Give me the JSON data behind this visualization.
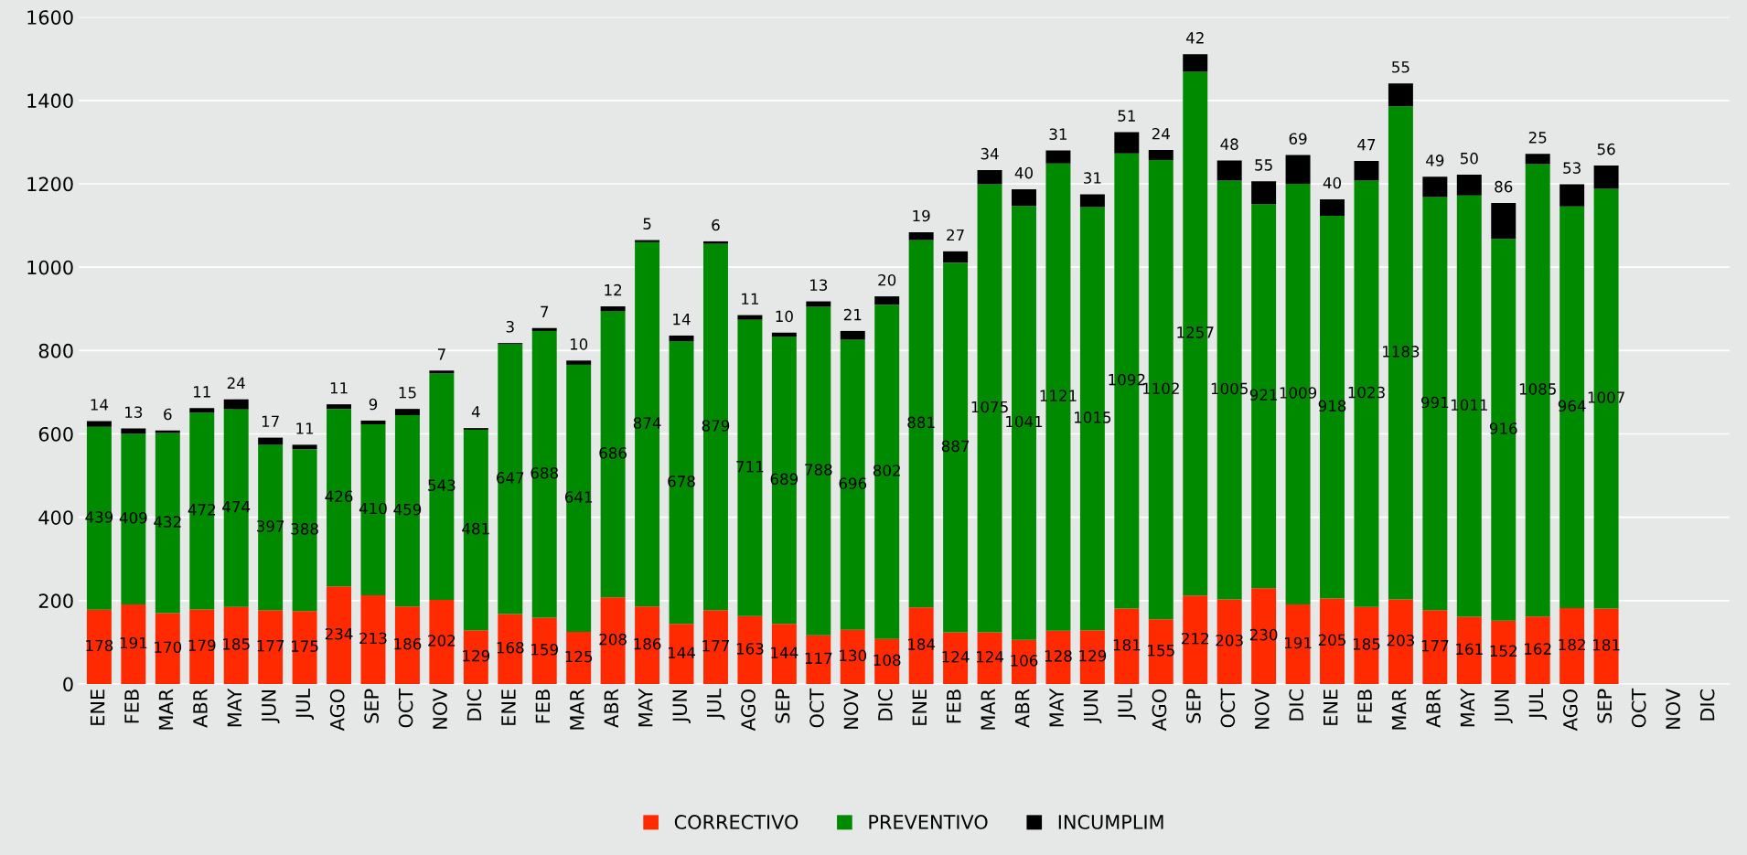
{
  "chart_data": {
    "type": "bar",
    "stacked": true,
    "data_labels": true,
    "grid": "y",
    "legend": "bottom",
    "ylim": [
      0,
      1600
    ],
    "yticks": [
      0,
      200,
      400,
      600,
      800,
      1000,
      1200,
      1400,
      1600
    ],
    "categories": [
      "ENE",
      "FEB",
      "MAR",
      "ABR",
      "MAY",
      "JUN",
      "JUL",
      "AGO",
      "SEP",
      "OCT",
      "NOV",
      "DIC",
      "ENE",
      "FEB",
      "MAR",
      "ABR",
      "MAY",
      "JUN",
      "JUL",
      "AGO",
      "SEP",
      "OCT",
      "NOV",
      "DIC",
      "ENE",
      "FEB",
      "MAR",
      "ABR",
      "MAY",
      "JUN",
      "JUL",
      "AGO",
      "SEP",
      "OCT",
      "NOV",
      "DIC",
      "ENE",
      "FEB",
      "MAR",
      "ABR",
      "MAY",
      "JUN",
      "JUL",
      "AGO",
      "SEP",
      "OCT",
      "NOV",
      "DIC"
    ],
    "series": [
      {
        "name": "CORRECTIVO",
        "color": "#ff2a00",
        "values": [
          178,
          191,
          170,
          179,
          185,
          177,
          175,
          234,
          213,
          186,
          202,
          129,
          168,
          159,
          125,
          208,
          186,
          144,
          177,
          163,
          144,
          117,
          130,
          108,
          184,
          124,
          124,
          106,
          128,
          129,
          181,
          155,
          212,
          203,
          230,
          191,
          205,
          185,
          203,
          177,
          161,
          152,
          162,
          182,
          181,
          null,
          null,
          null
        ]
      },
      {
        "name": "PREVENTIVO",
        "color": "#008a00",
        "values": [
          439,
          409,
          432,
          472,
          474,
          397,
          388,
          426,
          410,
          459,
          543,
          481,
          647,
          688,
          641,
          686,
          874,
          678,
          879,
          711,
          689,
          788,
          696,
          802,
          881,
          887,
          1075,
          1041,
          1121,
          1015,
          1092,
          1102,
          1257,
          1005,
          921,
          1009,
          918,
          1023,
          1183,
          991,
          1011,
          916,
          1085,
          964,
          1007,
          null,
          null,
          null
        ]
      },
      {
        "name": "INCUMPLIM",
        "color": "#000000",
        "values": [
          14,
          13,
          6,
          11,
          24,
          17,
          11,
          11,
          9,
          15,
          7,
          4,
          3,
          7,
          10,
          12,
          5,
          14,
          6,
          11,
          10,
          13,
          21,
          20,
          19,
          27,
          34,
          40,
          31,
          31,
          51,
          24,
          42,
          48,
          55,
          69,
          40,
          47,
          55,
          49,
          50,
          86,
          25,
          53,
          56,
          null,
          null,
          null
        ]
      }
    ]
  }
}
